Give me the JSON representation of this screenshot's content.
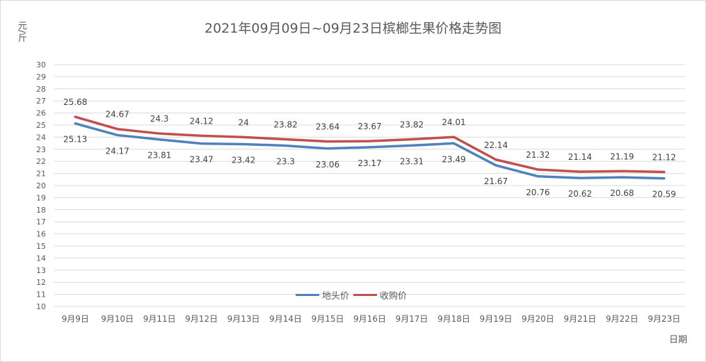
{
  "title": "2021年09月09日~09月23日槟榔生果价格走势图",
  "ylabel": "元/斤",
  "xlabel": "日期",
  "colors": {
    "series1": "#4f81bd",
    "series2": "#c0504d",
    "grid": "#d9d9d9",
    "text": "#595959"
  },
  "chart_data": {
    "type": "line",
    "title": "2021年09月09日~09月23日槟榔生果价格走势图",
    "xlabel": "日期",
    "ylabel": "元/斤",
    "ylim": [
      10,
      30
    ],
    "yticks": [
      10,
      11,
      12,
      13,
      14,
      15,
      16,
      17,
      18,
      19,
      20,
      21,
      22,
      23,
      24,
      25,
      26,
      27,
      28,
      29,
      30
    ],
    "grid": true,
    "legend_position": "bottom-center",
    "categories": [
      "9月9日",
      "9月10日",
      "9月11日",
      "9月12日",
      "9月13日",
      "9月14日",
      "9月15日",
      "9月16日",
      "9月17日",
      "9月18日",
      "9月19日",
      "9月20日",
      "9月21日",
      "9月22日",
      "9月23日"
    ],
    "series": [
      {
        "name": "地头价",
        "color": "#4f81bd",
        "label_position": "below",
        "values": [
          25.13,
          24.17,
          23.81,
          23.47,
          23.42,
          23.3,
          23.06,
          23.17,
          23.31,
          23.49,
          21.67,
          20.76,
          20.62,
          20.68,
          20.59
        ]
      },
      {
        "name": "收购价",
        "color": "#c0504d",
        "label_position": "above",
        "values": [
          25.68,
          24.67,
          24.3,
          24.12,
          24,
          23.82,
          23.64,
          23.67,
          23.82,
          24.01,
          22.14,
          21.32,
          21.14,
          21.19,
          21.12
        ]
      }
    ]
  }
}
